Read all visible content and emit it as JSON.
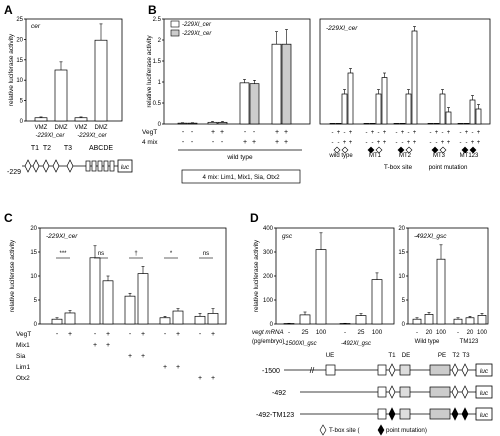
{
  "panel_letters": [
    "A",
    "B",
    "C",
    "D"
  ],
  "chart_data": [
    {
      "type": "bar",
      "panel": "A",
      "ylabel": "relative luciferase activity",
      "yticks": [
        "0",
        "5",
        "10",
        "15",
        "20",
        "25"
      ],
      "ylim": [
        0,
        25
      ],
      "inset": "cer",
      "categories": [
        "VMZ",
        "DMZ",
        "VMZ",
        "DMZ"
      ],
      "groups": [
        "-229Xl_cer",
        "-229Xt_cer"
      ],
      "values": [
        0.8,
        12.5,
        0.8,
        19.8
      ],
      "errors": [
        0.2,
        2.0,
        0.2,
        4.0
      ]
    },
    {
      "type": "bar",
      "panel": "B-left",
      "ylabel": "relative luciferase activity",
      "yticks": [
        "0",
        "0.5",
        "1",
        "1.5",
        "2",
        "2.5"
      ],
      "ylim": [
        0,
        2.5
      ],
      "legend": [
        "-229Xl_cer",
        "-229Xt_cer"
      ],
      "row_labels": [
        "VegT",
        "4 mix"
      ],
      "conditions": [
        {
          "vegt": "-",
          "mix": "-"
        },
        {
          "vegt": "+",
          "mix": "-"
        },
        {
          "vegt": "-",
          "mix": "+"
        },
        {
          "vegt": "+",
          "mix": "+"
        }
      ],
      "series": [
        {
          "name": "-229Xl_cer",
          "values": [
            0.02,
            0.04,
            0.98,
            1.9
          ],
          "errors": [
            0.01,
            0.02,
            0.08,
            0.3
          ]
        },
        {
          "name": "-229Xt_cer",
          "values": [
            0.02,
            0.04,
            0.96,
            1.9
          ],
          "errors": [
            0.01,
            0.02,
            0.08,
            0.35
          ]
        }
      ],
      "group_label": "wild type",
      "footnote": "4 mix: Lim1, Mix1, Sia, Otx2"
    },
    {
      "type": "bar",
      "panel": "B-right",
      "inset": "-229Xl_cer",
      "row_labels": [
        "VegT",
        "4 mix"
      ],
      "pair_signs": {
        "vegt": [
          "-",
          "+"
        ],
        "mix": [
          "-",
          "-",
          "+",
          "+"
        ]
      },
      "groups": [
        "wild type",
        "MT1",
        "MT2",
        "MT3",
        "MT123"
      ],
      "series": [
        {
          "name": "- / -",
          "values": [
            0.02,
            0.02,
            0.02,
            0.02,
            0.02
          ]
        },
        {
          "name": "+ / -",
          "values": [
            0.02,
            0.02,
            0.02,
            0.02,
            0.02
          ]
        },
        {
          "name": "- / +",
          "values": [
            1.0,
            1.0,
            1.0,
            1.0,
            0.8
          ]
        },
        {
          "name": "+ / +",
          "values": [
            1.7,
            1.55,
            3.1,
            0.4,
            0.5
          ]
        }
      ],
      "xlabel": "T-box site",
      "xlabel_note": "point mutation"
    },
    {
      "type": "bar",
      "panel": "C",
      "inset": "-229Xl_cer",
      "ylabel": "relative luciferase activity",
      "yticks": [
        "0",
        "5",
        "10",
        "15",
        "20"
      ],
      "ylim": [
        0,
        20
      ],
      "row_labels": [
        "VegT",
        "Mix1",
        "Sia",
        "Lim1",
        "Otx2"
      ],
      "signs": {
        "VegT": [
          "-",
          "+",
          "-",
          "+",
          "-",
          "+",
          "-",
          "+",
          "-",
          "+"
        ],
        "Mix1": [
          "",
          "",
          "+",
          "+",
          "",
          "",
          "",
          "",
          "",
          ""
        ],
        "Sia": [
          "",
          "",
          "",
          "",
          "+",
          "+",
          "",
          "",
          "",
          ""
        ],
        "Lim1": [
          "",
          "",
          "",
          "",
          "",
          "",
          "+",
          "+",
          "",
          ""
        ],
        "Otx2": [
          "",
          "",
          "",
          "",
          "",
          "",
          "",
          "",
          "+",
          "+"
        ]
      },
      "values": [
        1.0,
        2.3,
        13.8,
        9.0,
        5.8,
        10.5,
        1.3,
        2.7,
        1.6,
        2.2
      ],
      "errors": [
        0.3,
        0.5,
        2.5,
        1.0,
        0.6,
        1.5,
        0.3,
        0.5,
        0.6,
        1.0
      ],
      "significance": [
        "***",
        "ns",
        "†",
        "*",
        "ns"
      ]
    },
    {
      "type": "bar",
      "panel": "D-left",
      "inset": "gsc",
      "ylabel": "relative luciferase activity",
      "yticks": [
        "0",
        "100",
        "200",
        "300",
        "400"
      ],
      "ylim": [
        0,
        400
      ],
      "row_label": "vegt mRNA",
      "row_unit": "(pg/embryo)",
      "doses": [
        "-",
        "25",
        "100",
        "-",
        "25",
        "100"
      ],
      "groups": [
        "-1500Xl_gsc",
        "-492Xl_gsc"
      ],
      "values": [
        2,
        38,
        310,
        2,
        35,
        185
      ],
      "errors": [
        1,
        12,
        70,
        1,
        8,
        28
      ]
    },
    {
      "type": "bar",
      "panel": "D-right",
      "inset": "-492Xl_gsc",
      "yticks": [
        "0",
        "5",
        "10",
        "15",
        "20"
      ],
      "ylim": [
        0,
        20
      ],
      "doses": [
        "-",
        "20",
        "100",
        "-",
        "20",
        "100"
      ],
      "groups": [
        "Wild type",
        "TM123"
      ],
      "values": [
        1.0,
        2.0,
        13.5,
        1.0,
        1.3,
        1.8
      ],
      "errors": [
        0.3,
        0.4,
        3.0,
        0.3,
        0.3,
        0.4
      ]
    }
  ],
  "diagram_A": {
    "sites": [
      "T1",
      "T2",
      "T3",
      "ABCDE"
    ],
    "position": "-229",
    "reporter": "luc"
  },
  "diagram_D": {
    "labels": [
      "UE",
      "T1",
      "DE",
      "PE",
      "T2",
      "T3"
    ],
    "constructs": [
      "-1500",
      "-492",
      "-492-TM123"
    ],
    "reporter": "luc",
    "legend": "T-box site (",
    "legend_note": "point mutation)"
  }
}
